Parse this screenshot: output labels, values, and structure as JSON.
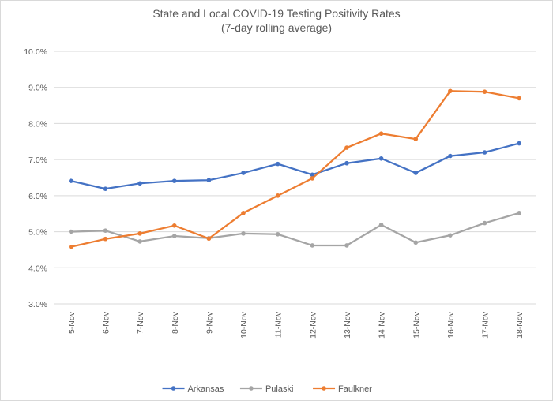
{
  "chart_data": {
    "type": "line",
    "title": "State and Local COVID-19 Testing Positivity Rates",
    "subtitle": "(7-day rolling average)",
    "categories": [
      "5-Nov",
      "6-Nov",
      "7-Nov",
      "8-Nov",
      "9-Nov",
      "10-Nov",
      "11-Nov",
      "12-Nov",
      "13-Nov",
      "14-Nov",
      "15-Nov",
      "16-Nov",
      "17-Nov",
      "18-Nov"
    ],
    "ylim": [
      3.0,
      10.0
    ],
    "yticks": [
      3.0,
      4.0,
      5.0,
      6.0,
      7.0,
      8.0,
      9.0,
      10.0
    ],
    "ytick_labels": [
      "3.0%",
      "4.0%",
      "5.0%",
      "6.0%",
      "7.0%",
      "8.0%",
      "9.0%",
      "10.0%"
    ],
    "grid": "horizontal",
    "legend_position": "bottom",
    "series": [
      {
        "name": "Arkansas",
        "color": "#4472c4",
        "values": [
          6.41,
          6.19,
          6.34,
          6.41,
          6.43,
          6.63,
          6.88,
          6.58,
          6.9,
          7.03,
          6.63,
          7.1,
          7.2,
          7.45
        ]
      },
      {
        "name": "Pulaski",
        "color": "#a5a5a5",
        "values": [
          5.0,
          5.03,
          4.73,
          4.88,
          4.82,
          4.95,
          4.93,
          4.62,
          4.62,
          5.19,
          4.7,
          4.9,
          5.24,
          5.52
        ]
      },
      {
        "name": "Faulkner",
        "color": "#ed7d31",
        "values": [
          4.58,
          4.8,
          4.95,
          5.17,
          4.81,
          5.52,
          6.0,
          6.48,
          7.33,
          7.72,
          7.57,
          8.9,
          8.88,
          8.7
        ]
      }
    ]
  }
}
